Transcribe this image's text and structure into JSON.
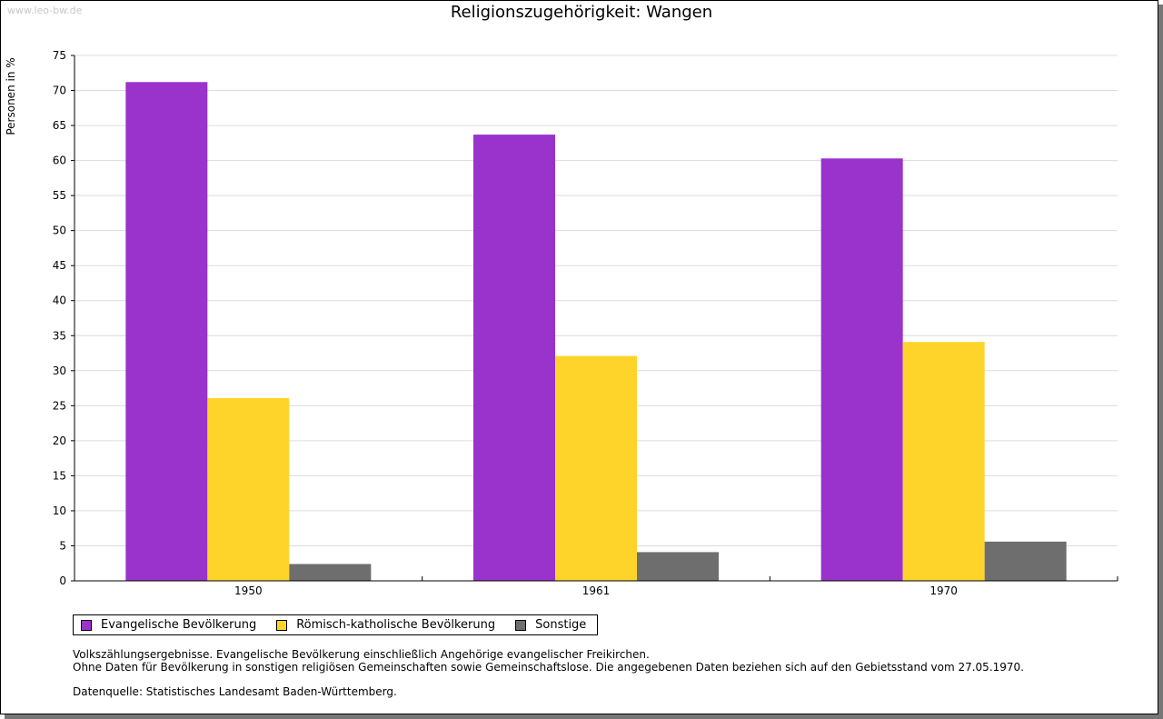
{
  "watermark": "www.leo-bw.de",
  "chart_data": {
    "type": "bar",
    "title": "Religionszugehörigkeit: Wangen",
    "xlabel": "",
    "ylabel": "Personen in %",
    "ylim": [
      0,
      75
    ],
    "yticks": [
      0,
      5,
      10,
      15,
      20,
      25,
      30,
      35,
      40,
      45,
      50,
      55,
      60,
      65,
      70,
      75
    ],
    "grid": true,
    "legend_position": "bottom-left",
    "categories": [
      "1950",
      "1961",
      "1970"
    ],
    "series": [
      {
        "name": "Evangelische Bevölkerung",
        "color": "#9933cc",
        "values": [
          71.2,
          63.7,
          60.3
        ]
      },
      {
        "name": "Römisch-katholische Bevölkerung",
        "color": "#ffd42a",
        "values": [
          26.1,
          32.1,
          34.1
        ]
      },
      {
        "name": "Sonstige",
        "color": "#6e6e6e",
        "values": [
          2.4,
          4.1,
          5.6
        ]
      }
    ]
  },
  "notes": {
    "line1": "Volkszählungsergebnisse. Evangelische Bevölkerung einschließlich Angehörige evangelischer Freikirchen.",
    "line2": "Ohne Daten für Bevölkerung in sonstigen religiösen Gemeinschaften sowie Gemeinschaftslose. Die angegebenen Daten beziehen sich auf den Gebietsstand vom 27.05.1970.",
    "source": "Datenquelle: Statistisches Landesamt Baden-Württemberg."
  }
}
